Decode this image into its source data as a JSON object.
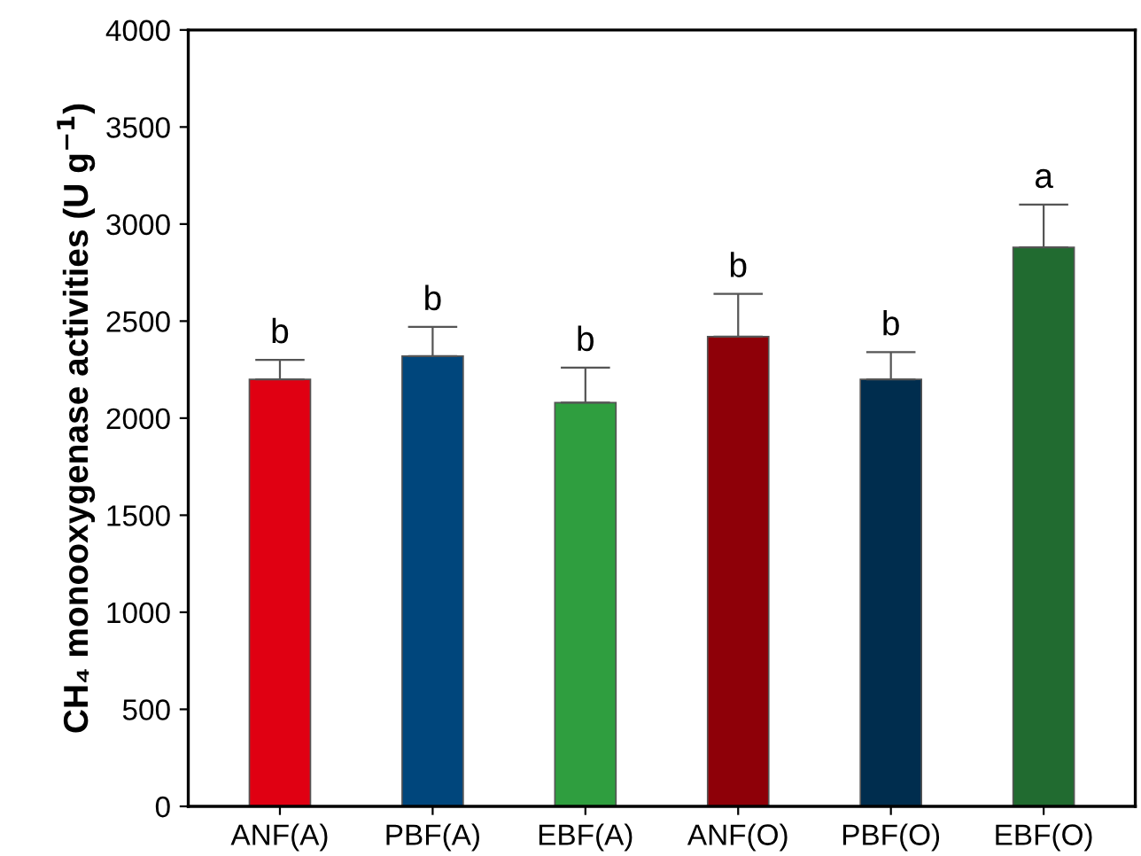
{
  "chart_data": {
    "type": "bar",
    "ylabel": "CH₄ monooxygenase activities (U g$^{−1}$)",
    "categories": [
      "ANF(A)",
      "PBF(A)",
      "EBF(A)",
      "ANF(O)",
      "PBF(O)",
      "EBF(O)"
    ],
    "values": [
      2200,
      2320,
      2080,
      2420,
      2200,
      2880
    ],
    "colors": [
      "#e00012",
      "#00467c",
      "#2f9e3f",
      "#8e0008",
      "#002d4e",
      "#216b30"
    ],
    "errors": [
      [
        2200,
        2300
      ],
      [
        2320,
        2470
      ],
      [
        2080,
        2260
      ],
      [
        2420,
        2640
      ],
      [
        2200,
        2340
      ],
      [
        2880,
        3100
      ]
    ],
    "ylim": [
      0,
      4000
    ],
    "yticks": [
      0,
      500,
      1000,
      1500,
      2000,
      2500,
      3000,
      3500,
      4000
    ],
    "annotations": [
      {
        "text": "b",
        "x": "ANF(A)",
        "y": 2300
      },
      {
        "text": "b",
        "x": "PBF(A)",
        "y": 2470
      },
      {
        "text": "b",
        "x": "EBF(A)",
        "y": 2260
      },
      {
        "text": "b",
        "x": "ANF(O)",
        "y": 2640
      },
      {
        "text": "b",
        "x": "PBF(O)",
        "y": 2340
      },
      {
        "text": "a",
        "x": "EBF(O)",
        "y": 3100
      }
    ],
    "grid": false,
    "legend": false
  }
}
